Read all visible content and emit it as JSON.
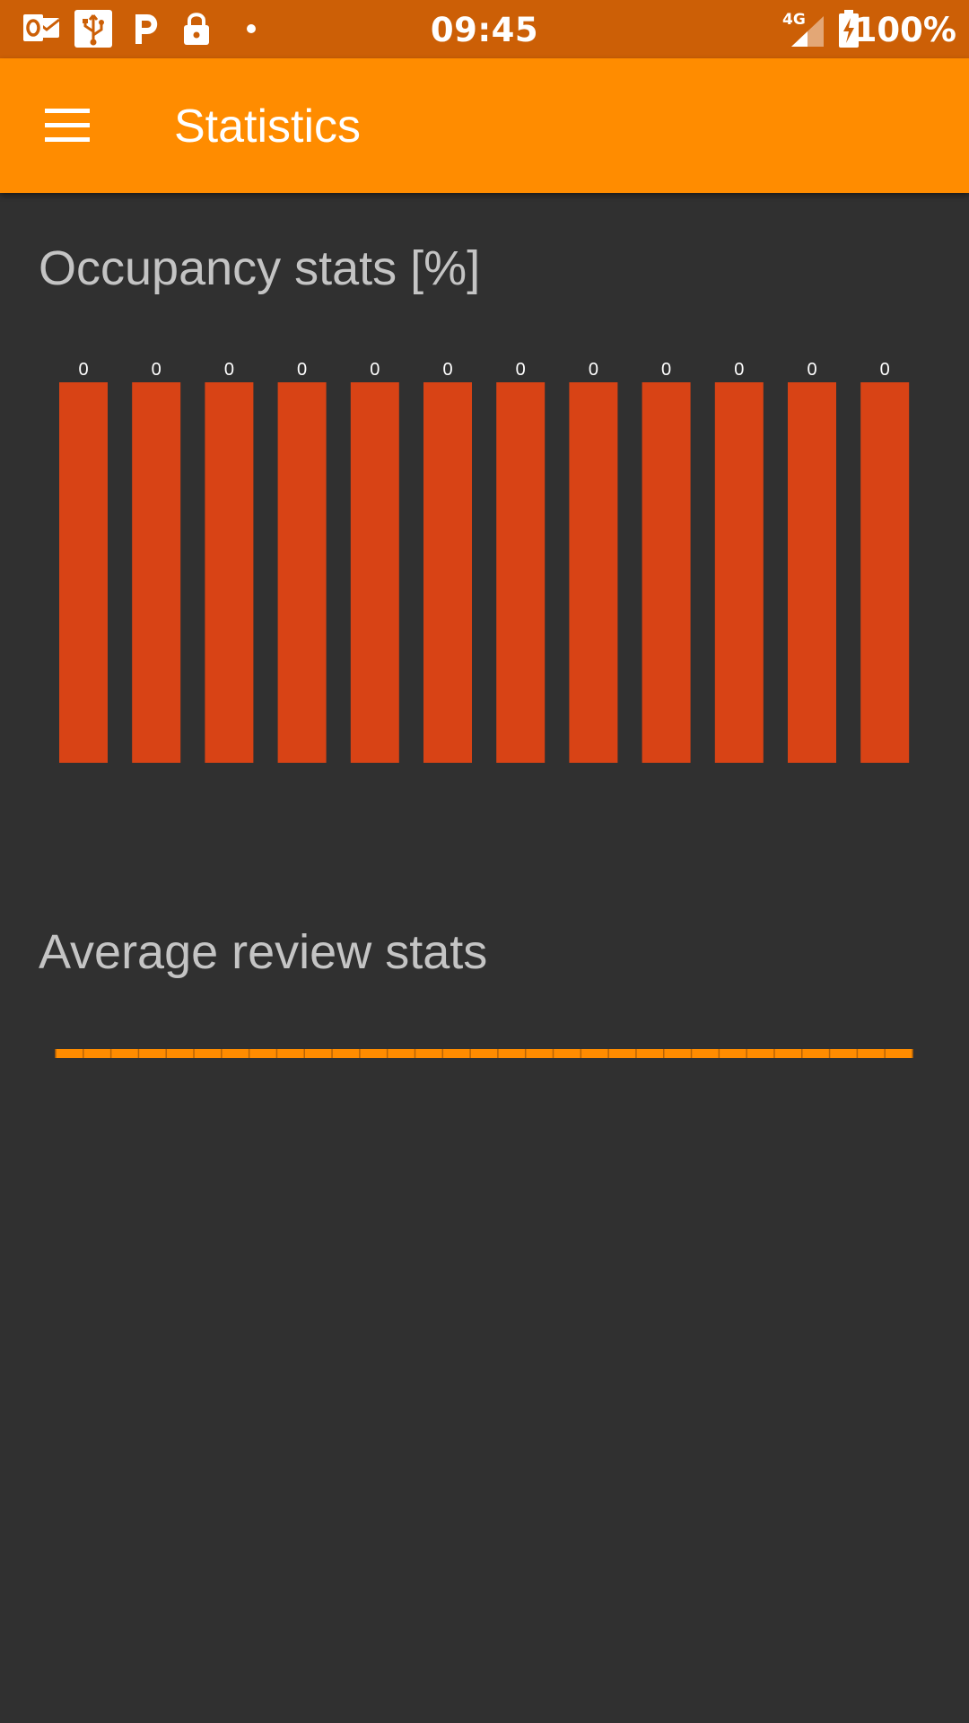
{
  "status_bar": {
    "time": "09:45",
    "network_type": "4G",
    "battery_text": "100%",
    "icons_left": [
      "outlook-icon",
      "usb-icon",
      "parking-icon",
      "lock-icon",
      "dot-icon"
    ],
    "icons_right": [
      "signal-icon",
      "battery-charging-icon"
    ]
  },
  "app_bar": {
    "menu_icon": "menu-icon",
    "title": "Statistics",
    "color": "#ff8c00"
  },
  "occupancy": {
    "title": "Occupancy stats [%]"
  },
  "average": {
    "title": "Average review stats"
  },
  "chart_data": [
    {
      "type": "bar",
      "title": "Occupancy stats [%]",
      "values": [
        0,
        0,
        0,
        0,
        0,
        0,
        0,
        0,
        0,
        0,
        0,
        0
      ],
      "data_labels": [
        "0",
        "0",
        "0",
        "0",
        "0",
        "0",
        "0",
        "0",
        "0",
        "0",
        "0",
        "0"
      ],
      "bar_color": "#d84315",
      "grid": false,
      "legend": "none"
    },
    {
      "type": "line",
      "title": "Average review stats",
      "values": [
        0,
        0,
        0,
        0,
        0,
        0,
        0,
        0,
        0,
        0,
        0,
        0,
        0,
        0,
        0,
        0,
        0,
        0,
        0,
        0,
        0,
        0,
        0,
        0,
        0,
        0,
        0,
        0,
        0,
        0,
        0,
        0
      ],
      "line_color": "#ff8c00",
      "grid": false,
      "legend": "none"
    }
  ]
}
